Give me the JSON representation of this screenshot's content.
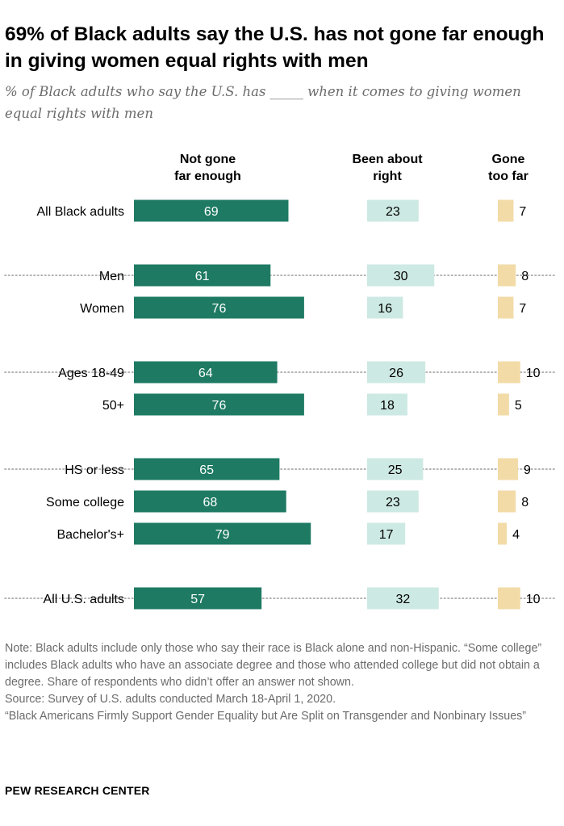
{
  "title": "69% of Black adults say the U.S. has not gone far enough in giving women equal rights with men",
  "subtitle": "% of Black adults who say the U.S. has _____ when it comes to giving women equal rights with men",
  "chart_data": {
    "type": "bar",
    "orientation": "horizontal",
    "layout": "three separate bar columns",
    "categories": [
      "All Black adults",
      "Men",
      "Women",
      "Ages 18-49",
      "50+",
      "HS or less",
      "Some college",
      "Bachelor's+",
      "All U.S. adults"
    ],
    "groups": [
      {
        "categories": [
          "All Black adults"
        ]
      },
      {
        "categories": [
          "Men",
          "Women"
        ]
      },
      {
        "categories": [
          "Ages 18-49",
          "50+"
        ]
      },
      {
        "categories": [
          "HS or less",
          "Some college",
          "Bachelor's+"
        ]
      },
      {
        "categories": [
          "All U.S. adults"
        ]
      }
    ],
    "series": [
      {
        "name": "Not gone far enough",
        "color": "#1e7a63",
        "label_color": "#ffffff",
        "values": [
          69,
          61,
          76,
          64,
          76,
          65,
          68,
          79,
          57
        ]
      },
      {
        "name": "Been about right",
        "color": "#cde9e3",
        "label_color": "#000000",
        "values": [
          23,
          30,
          16,
          26,
          18,
          25,
          23,
          17,
          32
        ]
      },
      {
        "name": "Gone too far",
        "color": "#f2dba7",
        "label_color": "#000000",
        "values": [
          7,
          8,
          7,
          10,
          5,
          9,
          8,
          4,
          10
        ]
      }
    ],
    "column_headers": [
      {
        "line1": "Not gone",
        "line2": "far enough"
      },
      {
        "line1": "Been about",
        "line2": "right"
      },
      {
        "line1": "Gone",
        "line2": "too far"
      }
    ],
    "xlabel": "",
    "ylabel": "",
    "xlim": [
      0,
      100
    ],
    "grid": false,
    "legend": "column headers"
  },
  "notes": [
    "Note: Black adults include only those who say their race is Black alone and non-Hispanic. “Some college” includes Black adults who have an associate degree and those who attended college but did not obtain a degree. Share of respondents who didn’t offer an answer not shown.",
    "Source: Survey of U.S. adults conducted March 18-April 1, 2020.",
    "“Black Americans Firmly Support Gender Equality but Are Split on Transgender and Nonbinary Issues”"
  ],
  "brand": "PEW RESEARCH CENTER"
}
